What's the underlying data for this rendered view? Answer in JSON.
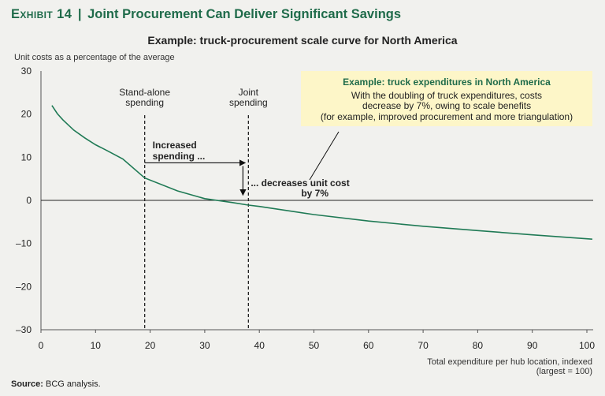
{
  "header": {
    "exhibit_label": "Exhibit 14",
    "separator": "|",
    "title": "Joint Procurement Can Deliver Significant Savings"
  },
  "source": {
    "label": "Source:",
    "text": "BCG analysis."
  },
  "colors": {
    "curve": "#1f7a55",
    "accent": "#1f6b4a",
    "callout_bg": "#fdf6c8",
    "page_bg": "#f1f1ee"
  },
  "chart_data": {
    "type": "line",
    "title": "Example: truck-procurement scale curve for North America",
    "ylabel": "Unit costs as a percentage of the average",
    "xlabel_line1": "Total expenditure per hub location, indexed",
    "xlabel_line2": "(largest = 100)",
    "xlim": [
      0,
      100
    ],
    "ylim": [
      -30,
      30
    ],
    "xticks": [
      0,
      10,
      20,
      30,
      40,
      50,
      60,
      70,
      80,
      90,
      100
    ],
    "yticks": [
      30,
      20,
      10,
      0,
      -10,
      -20,
      -30
    ],
    "ytick_labels": [
      "30",
      "20",
      "10",
      "0",
      "–10",
      "–20",
      "–30"
    ],
    "series": [
      {
        "name": "Scale curve",
        "x": [
          2,
          3,
          4,
          6,
          8,
          10,
          12,
          15,
          19,
          25,
          30,
          35,
          38,
          40,
          50,
          60,
          70,
          80,
          90,
          101
        ],
        "y": [
          22,
          20.1,
          18.7,
          16.3,
          14.5,
          12.9,
          11.6,
          9.6,
          5.2,
          2.2,
          0.4,
          -0.5,
          -1.1,
          -1.4,
          -3.3,
          -4.8,
          -6.0,
          -7.0,
          -8.0,
          -9.0
        ]
      }
    ],
    "vlines": [
      {
        "x": 19,
        "label_line1": "Stand-alone",
        "label_line2": "spending"
      },
      {
        "x": 38,
        "label_line1": "Joint",
        "label_line2": "spending"
      }
    ],
    "annotations": {
      "increase_line1": "Increased",
      "increase_line2": "spending ...",
      "decrease_line1": "... decreases unit cost",
      "decrease_line2": "by 7%",
      "arrow_y": 8.7,
      "arrow_x_from": 19,
      "arrow_x_to": 38,
      "down_arrow_x": 37,
      "down_arrow_y_from": 8.7,
      "down_arrow_y_to": 1.2
    },
    "callout": {
      "title": "Example: truck expenditures in North America",
      "line1": "With the doubling of truck expenditures, costs",
      "line2": "decrease by 7%, owing to scale benefits",
      "line3": "(for example, improved procurement and more triangulation)"
    }
  }
}
